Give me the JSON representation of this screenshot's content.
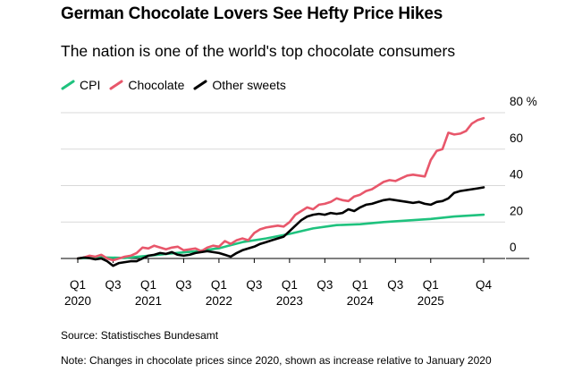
{
  "chart_data": {
    "type": "line",
    "title": "German Chocolate Lovers See Hefty Price Hikes",
    "subtitle": "The nation is one of the world's top chocolate consumers",
    "unit": "%",
    "ylim": [
      -5,
      80
    ],
    "yticks": [
      {
        "value": 80,
        "label": "80 %"
      },
      {
        "value": 60,
        "label": "60"
      },
      {
        "value": 40,
        "label": "40"
      },
      {
        "value": 20,
        "label": "20"
      },
      {
        "value": 0,
        "label": "0"
      }
    ],
    "xlim": [
      0,
      69
    ],
    "xticks": [
      {
        "month": 0,
        "line1": "Q1",
        "line2": "2020"
      },
      {
        "month": 6,
        "line1": "Q3",
        "line2": ""
      },
      {
        "month": 12,
        "line1": "Q1",
        "line2": "2021"
      },
      {
        "month": 18,
        "line1": "Q3",
        "line2": ""
      },
      {
        "month": 24,
        "line1": "Q1",
        "line2": "2022"
      },
      {
        "month": 30,
        "line1": "Q3",
        "line2": ""
      },
      {
        "month": 36,
        "line1": "Q1",
        "line2": "2023"
      },
      {
        "month": 42,
        "line1": "Q3",
        "line2": ""
      },
      {
        "month": 48,
        "line1": "Q1",
        "line2": "2024"
      },
      {
        "month": 54,
        "line1": "Q3",
        "line2": ""
      },
      {
        "month": 60,
        "line1": "Q1",
        "line2": "2025"
      },
      {
        "month": 69,
        "line1": "Q4",
        "line2": ""
      }
    ],
    "x_note": "x values are months since January 2020",
    "series": [
      {
        "name": "CPI",
        "color": "#1fc27e",
        "x": [
          0,
          4,
          8,
          12,
          16,
          20,
          24,
          28,
          32,
          36,
          40,
          44,
          48,
          52,
          56,
          60,
          64,
          69
        ],
        "values": [
          0,
          0.6,
          0.3,
          1.5,
          2.8,
          3.9,
          5.6,
          9,
          11,
          13.5,
          16.5,
          18.3,
          18.8,
          20,
          20.8,
          21.7,
          23,
          24
        ]
      },
      {
        "name": "Chocolate",
        "color": "#e8576b",
        "x": [
          0,
          1,
          2,
          3,
          4,
          5,
          6,
          7,
          8,
          9,
          10,
          11,
          12,
          13,
          14,
          15,
          16,
          17,
          18,
          19,
          20,
          21,
          22,
          23,
          24,
          25,
          26,
          27,
          28,
          29,
          30,
          31,
          32,
          33,
          34,
          35,
          36,
          37,
          38,
          39,
          40,
          41,
          42,
          43,
          44,
          45,
          46,
          47,
          48,
          49,
          50,
          51,
          52,
          53,
          54,
          55,
          56,
          57,
          58,
          59,
          60,
          61,
          62,
          63,
          64,
          65,
          66,
          67,
          68,
          69
        ],
        "values": [
          0,
          0.5,
          1.5,
          1,
          2,
          0,
          -1,
          0,
          1,
          1.5,
          3,
          6,
          5.5,
          7,
          6,
          5,
          6,
          6.5,
          4.5,
          5,
          5.5,
          4,
          6,
          7,
          6.5,
          9.5,
          8,
          10,
          11,
          10,
          14,
          16,
          17,
          17.5,
          18,
          17.5,
          20,
          24,
          26,
          28,
          27,
          29.5,
          30,
          31,
          33,
          32,
          31.5,
          34,
          35,
          37,
          38,
          40,
          42,
          43,
          42.5,
          44,
          45.5,
          46,
          45.5,
          45,
          54,
          59,
          60,
          69,
          68,
          68.5,
          70,
          74,
          76,
          77
        ]
      },
      {
        "name": "Other sweets",
        "color": "#000000",
        "x": [
          0,
          1,
          2,
          3,
          4,
          5,
          6,
          7,
          8,
          9,
          10,
          11,
          12,
          13,
          14,
          15,
          16,
          17,
          18,
          19,
          20,
          21,
          22,
          23,
          24,
          25,
          26,
          27,
          28,
          29,
          30,
          31,
          32,
          33,
          34,
          35,
          36,
          37,
          38,
          39,
          40,
          41,
          42,
          43,
          44,
          45,
          46,
          47,
          48,
          49,
          50,
          51,
          52,
          53,
          54,
          55,
          56,
          57,
          58,
          59,
          60,
          61,
          62,
          63,
          64,
          65,
          66,
          67,
          68,
          69
        ],
        "values": [
          0,
          0.5,
          0.2,
          -0.5,
          0,
          -1.5,
          -4,
          -2.5,
          -2,
          -1.5,
          -1.5,
          0,
          1.5,
          2,
          3,
          2.5,
          3.5,
          2,
          1.5,
          2,
          3,
          3.5,
          4,
          3.5,
          3,
          2,
          1,
          3,
          4.5,
          5.5,
          6.5,
          8,
          9,
          10,
          11,
          12,
          15,
          18,
          21,
          23,
          24,
          24.5,
          24,
          25,
          24.5,
          25,
          27,
          26,
          28,
          29.5,
          30,
          31,
          32,
          32.5,
          32,
          31.5,
          31,
          30.5,
          31,
          30,
          29.5,
          31,
          31.5,
          33,
          36,
          37,
          37.5,
          38,
          38.5,
          39
        ]
      }
    ],
    "source": "Source: Statistisches Bundesamt",
    "note": "Note: Changes in chocolate prices since 2020, shown as increase relative to January 2020"
  }
}
